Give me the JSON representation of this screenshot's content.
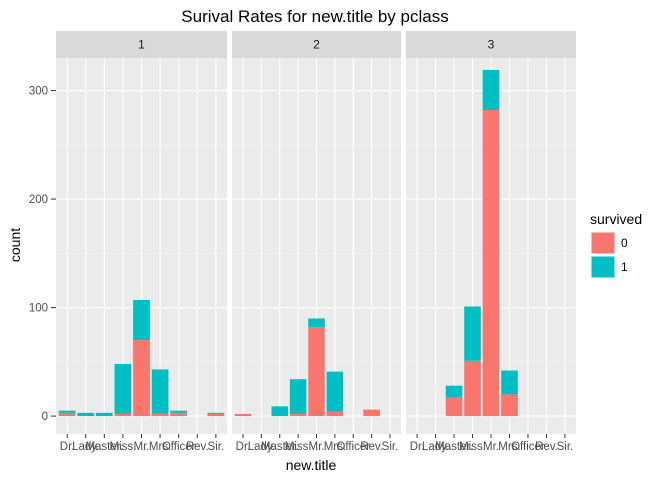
{
  "chart_data": {
    "type": "bar",
    "stacked": true,
    "title": "Surival Rates for new.title by pclass",
    "xlabel": "new.title",
    "ylabel": "count",
    "ylim": [
      0,
      330
    ],
    "yticks": [
      0,
      100,
      200,
      300
    ],
    "categories": [
      "Dr.",
      "Lady.",
      "Master.",
      "Miss.",
      "Mr.",
      "Mrs.",
      "Officer",
      "Rev.",
      "Sir."
    ],
    "legend": {
      "title": "survived",
      "position": "right"
    },
    "series_colors": {
      "0": "#F8766D",
      "1": "#00BFC4"
    },
    "grid": true,
    "panels": [
      {
        "label": "1",
        "series": [
          {
            "name": "0",
            "values": [
              3,
              0,
              0,
              2,
              70,
              2,
              3,
              0,
              2
            ]
          },
          {
            "name": "1",
            "values": [
              2,
              3,
              3,
              46,
              37,
              41,
              2,
              0,
              1
            ]
          }
        ]
      },
      {
        "label": "2",
        "series": [
          {
            "name": "0",
            "values": [
              2,
              0,
              0,
              2,
              82,
              4,
              0,
              6,
              0
            ]
          },
          {
            "name": "1",
            "values": [
              0,
              0,
              9,
              32,
              8,
              37,
              0,
              0,
              0
            ]
          }
        ]
      },
      {
        "label": "3",
        "series": [
          {
            "name": "0",
            "values": [
              0,
              0,
              17,
              51,
              282,
              20,
              0,
              0,
              0
            ]
          },
          {
            "name": "1",
            "values": [
              0,
              0,
              11,
              50,
              37,
              22,
              0,
              0,
              0
            ]
          }
        ]
      }
    ]
  }
}
